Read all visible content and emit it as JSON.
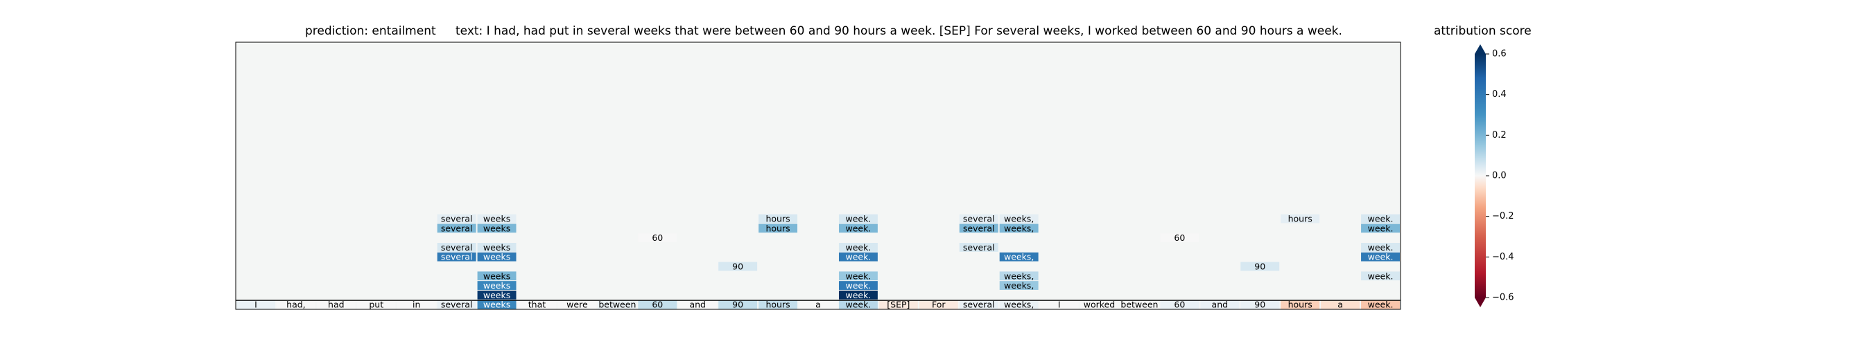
{
  "chart_data": {
    "type": "heatmap",
    "title_prediction": "prediction:  entailment",
    "title_text": "text:  I had, had put in several weeks that were between 60 and 90 hours a week. [SEP] For several weeks, I worked between 60 and 90 hours a week.",
    "tokens": [
      "I",
      "had,",
      "had",
      "put",
      "in",
      "several",
      "weeks",
      "that",
      "were",
      "between",
      "60",
      "and",
      "90",
      "hours",
      "a",
      "week.",
      "[SEP]",
      "For",
      "several",
      "weeks,",
      "I",
      "worked",
      "between",
      "60",
      "and",
      "90",
      "hours",
      "a",
      "week."
    ],
    "base_scores": [
      0.02,
      0.0,
      0.0,
      0.0,
      0.0,
      0.02,
      0.35,
      0.0,
      0.0,
      0.02,
      0.08,
      0.0,
      0.08,
      0.08,
      0.0,
      0.1,
      -0.03,
      -0.03,
      0.02,
      0.02,
      0.0,
      0.0,
      0.0,
      0.02,
      0.02,
      0.02,
      -0.08,
      -0.05,
      -0.1
    ],
    "rows": [
      [
        "",
        "",
        "",
        "",
        "",
        "",
        "weeks",
        "",
        "",
        "",
        "",
        "",
        "",
        "",
        "",
        "week.",
        "",
        "",
        "",
        "",
        "",
        "",
        "",
        "",
        "",
        "",
        "",
        "",
        ""
      ],
      [
        "",
        "",
        "",
        "",
        "",
        "",
        "weeks",
        "",
        "",
        "",
        "",
        "",
        "",
        "",
        "",
        "week.",
        "",
        "",
        "",
        "weeks,",
        "",
        "",
        "",
        "",
        "",
        "",
        "",
        "",
        ""
      ],
      [
        "",
        "",
        "",
        "",
        "",
        "",
        "weeks",
        "",
        "",
        "",
        "",
        "",
        "",
        "",
        "",
        "week.",
        "",
        "",
        "",
        "weeks,",
        "",
        "",
        "",
        "",
        "",
        "",
        "",
        "",
        "week."
      ],
      [
        "",
        "",
        "",
        "",
        "",
        "",
        "",
        "",
        "",
        "",
        "",
        "",
        "90",
        "",
        "",
        "",
        "",
        "",
        "",
        "",
        "",
        "",
        "",
        "",
        "",
        "90",
        "",
        "",
        ""
      ],
      [
        "",
        "",
        "",
        "",
        "",
        "several",
        "weeks",
        "",
        "",
        "",
        "",
        "",
        "",
        "",
        "",
        "week.",
        "",
        "",
        "",
        "weeks,",
        "",
        "",
        "",
        "",
        "",
        "",
        "",
        "",
        "week."
      ],
      [
        "",
        "",
        "",
        "",
        "",
        "several",
        "weeks",
        "",
        "",
        "",
        "",
        "",
        "",
        "",
        "",
        "week.",
        "",
        "",
        "several",
        "",
        "",
        "",
        "",
        "",
        "",
        "",
        "",
        "",
        "week."
      ],
      [
        "",
        "",
        "",
        "",
        "",
        "",
        "",
        "",
        "",
        "",
        "60",
        "",
        "",
        "",
        "",
        "",
        "",
        "",
        "",
        "",
        "",
        "",
        "",
        "60",
        "",
        "",
        "",
        "",
        ""
      ],
      [
        "",
        "",
        "",
        "",
        "",
        "several",
        "weeks",
        "",
        "",
        "",
        "",
        "",
        "",
        "hours",
        "",
        "week.",
        "",
        "",
        "several",
        "weeks,",
        "",
        "",
        "",
        "",
        "",
        "",
        "",
        "",
        "week."
      ],
      [
        "",
        "",
        "",
        "",
        "",
        "several",
        "weeks",
        "",
        "",
        "",
        "",
        "",
        "",
        "hours",
        "",
        "week.",
        "",
        "",
        "several",
        "weeks,",
        "",
        "",
        "",
        "",
        "",
        "",
        "hours",
        "",
        "week."
      ],
      [
        "",
        "",
        "",
        "",
        "",
        "",
        "",
        "",
        "",
        "",
        "",
        "",
        "",
        "",
        "",
        "",
        "",
        "",
        "",
        "",
        "",
        "",
        "",
        "",
        "",
        "",
        "",
        "",
        ""
      ],
      [
        "",
        "",
        "",
        "",
        "",
        "",
        "",
        "",
        "",
        "",
        "",
        "",
        "",
        "",
        "",
        "",
        "",
        "",
        "",
        "",
        "",
        "",
        "",
        "",
        "",
        "",
        "",
        "",
        ""
      ],
      [
        "",
        "",
        "",
        "",
        "",
        "",
        "",
        "",
        "",
        "",
        "",
        "",
        "",
        "",
        "",
        "",
        "",
        "",
        "",
        "",
        "",
        "",
        "",
        "",
        "",
        "",
        "",
        "",
        ""
      ],
      [
        "",
        "",
        "",
        "",
        "",
        "",
        "",
        "",
        "",
        "",
        "",
        "",
        "",
        "",
        "",
        "",
        "",
        "",
        "",
        "",
        "",
        "",
        "",
        "",
        "",
        "",
        "",
        "",
        ""
      ],
      [
        "",
        "",
        "",
        "",
        "",
        "",
        "",
        "",
        "",
        "",
        "",
        "",
        "",
        "",
        "",
        "",
        "",
        "",
        "",
        "",
        "",
        "",
        "",
        "",
        "",
        "",
        "",
        "",
        ""
      ],
      [
        "",
        "",
        "",
        "",
        "",
        "",
        "",
        "",
        "",
        "",
        "",
        "",
        "",
        "",
        "",
        "",
        "",
        "",
        "",
        "",
        "",
        "",
        "",
        "",
        "",
        "",
        "",
        "",
        ""
      ],
      [
        "",
        "",
        "",
        "",
        "",
        "",
        "",
        "",
        "",
        "",
        "",
        "",
        "",
        "",
        "",
        "",
        "",
        "",
        "",
        "",
        "",
        "",
        "",
        "",
        "",
        "",
        "",
        "",
        ""
      ],
      [
        "",
        "",
        "",
        "",
        "",
        "",
        "",
        "",
        "",
        "",
        "",
        "",
        "",
        "",
        "",
        "",
        "",
        "",
        "",
        "",
        "",
        "",
        "",
        "",
        "",
        "",
        "",
        "",
        ""
      ],
      [
        "",
        "",
        "",
        "",
        "",
        "",
        "",
        "",
        "",
        "",
        "",
        "",
        "",
        "",
        "",
        "",
        "",
        "",
        "",
        "",
        "",
        "",
        "",
        "",
        "",
        "",
        "",
        "",
        ""
      ],
      [
        "",
        "",
        "",
        "",
        "",
        "",
        "",
        "",
        "",
        "",
        "",
        "",
        "",
        "",
        "",
        "",
        "",
        "",
        "",
        "",
        "",
        "",
        "",
        "",
        "",
        "",
        "",
        "",
        ""
      ],
      [
        "",
        "",
        "",
        "",
        "",
        "",
        "",
        "",
        "",
        "",
        "",
        "",
        "",
        "",
        "",
        "",
        "",
        "",
        "",
        "",
        "",
        "",
        "",
        "",
        "",
        "",
        "",
        "",
        ""
      ],
      [
        "",
        "",
        "",
        "",
        "",
        "",
        "",
        "",
        "",
        "",
        "",
        "",
        "",
        "",
        "",
        "",
        "",
        "",
        "",
        "",
        "",
        "",
        "",
        "",
        "",
        "",
        "",
        "",
        ""
      ],
      [
        "",
        "",
        "",
        "",
        "",
        "",
        "",
        "",
        "",
        "",
        "",
        "",
        "",
        "",
        "",
        "",
        "",
        "",
        "",
        "",
        "",
        "",
        "",
        "",
        "",
        "",
        "",
        "",
        ""
      ],
      [
        "",
        "",
        "",
        "",
        "",
        "",
        "",
        "",
        "",
        "",
        "",
        "",
        "",
        "",
        "",
        "",
        "",
        "",
        "",
        "",
        "",
        "",
        "",
        "",
        "",
        "",
        "",
        "",
        ""
      ],
      [
        "",
        "",
        "",
        "",
        "",
        "",
        "",
        "",
        "",
        "",
        "",
        "",
        "",
        "",
        "",
        "",
        "",
        "",
        "",
        "",
        "",
        "",
        "",
        "",
        "",
        "",
        "",
        "",
        ""
      ],
      [
        "",
        "",
        "",
        "",
        "",
        "",
        "",
        "",
        "",
        "",
        "",
        "",
        "",
        "",
        "",
        "",
        "",
        "",
        "",
        "",
        "",
        "",
        "",
        "",
        "",
        "",
        "",
        "",
        ""
      ],
      [
        "",
        "",
        "",
        "",
        "",
        "",
        "",
        "",
        "",
        "",
        "",
        "",
        "",
        "",
        "",
        "",
        "",
        "",
        "",
        "",
        "",
        "",
        "",
        "",
        "",
        "",
        "",
        "",
        ""
      ],
      [
        "",
        "",
        "",
        "",
        "",
        "",
        "",
        "",
        "",
        "",
        "",
        "",
        "",
        "",
        "",
        "",
        "",
        "",
        "",
        "",
        "",
        "",
        "",
        "",
        "",
        "",
        "",
        "",
        ""
      ]
    ],
    "cells": [
      [
        [
          6,
          0.58
        ],
        [
          15,
          0.6
        ]
      ],
      [
        [
          6,
          0.35
        ],
        [
          15,
          0.4
        ],
        [
          19,
          0.15
        ]
      ],
      [
        [
          6,
          0.2
        ],
        [
          15,
          0.15
        ],
        [
          19,
          0.1
        ],
        [
          28,
          0.05
        ]
      ],
      [
        [
          12,
          0.05
        ],
        [
          25,
          0.05
        ]
      ],
      [
        [
          5,
          0.4
        ],
        [
          6,
          0.4
        ],
        [
          15,
          0.4
        ],
        [
          19,
          0.4
        ],
        [
          28,
          0.4
        ]
      ],
      [
        [
          5,
          0.05
        ],
        [
          6,
          0.05
        ],
        [
          15,
          0.05
        ],
        [
          18,
          0.05
        ],
        [
          28,
          0.05
        ]
      ],
      [
        [
          10,
          0.0
        ],
        [
          23,
          0.0
        ]
      ],
      [
        [
          5,
          0.2
        ],
        [
          6,
          0.2
        ],
        [
          13,
          0.2
        ],
        [
          15,
          0.2
        ],
        [
          18,
          0.2
        ],
        [
          19,
          0.2
        ],
        [
          28,
          0.2
        ]
      ],
      [
        [
          5,
          0.03
        ],
        [
          6,
          0.03
        ],
        [
          13,
          0.05
        ],
        [
          15,
          0.05
        ],
        [
          18,
          0.03
        ],
        [
          19,
          0.03
        ],
        [
          26,
          0.03
        ],
        [
          28,
          0.05
        ]
      ]
    ],
    "colorbar": {
      "label": "attribution score",
      "ticks": [
        "0.6",
        "0.4",
        "0.2",
        "0.0",
        "−0.2",
        "−0.4",
        "−0.6"
      ],
      "range": [
        -0.6,
        0.6
      ]
    },
    "colormap": "RdBu",
    "background_color": "#f4f6f5"
  }
}
